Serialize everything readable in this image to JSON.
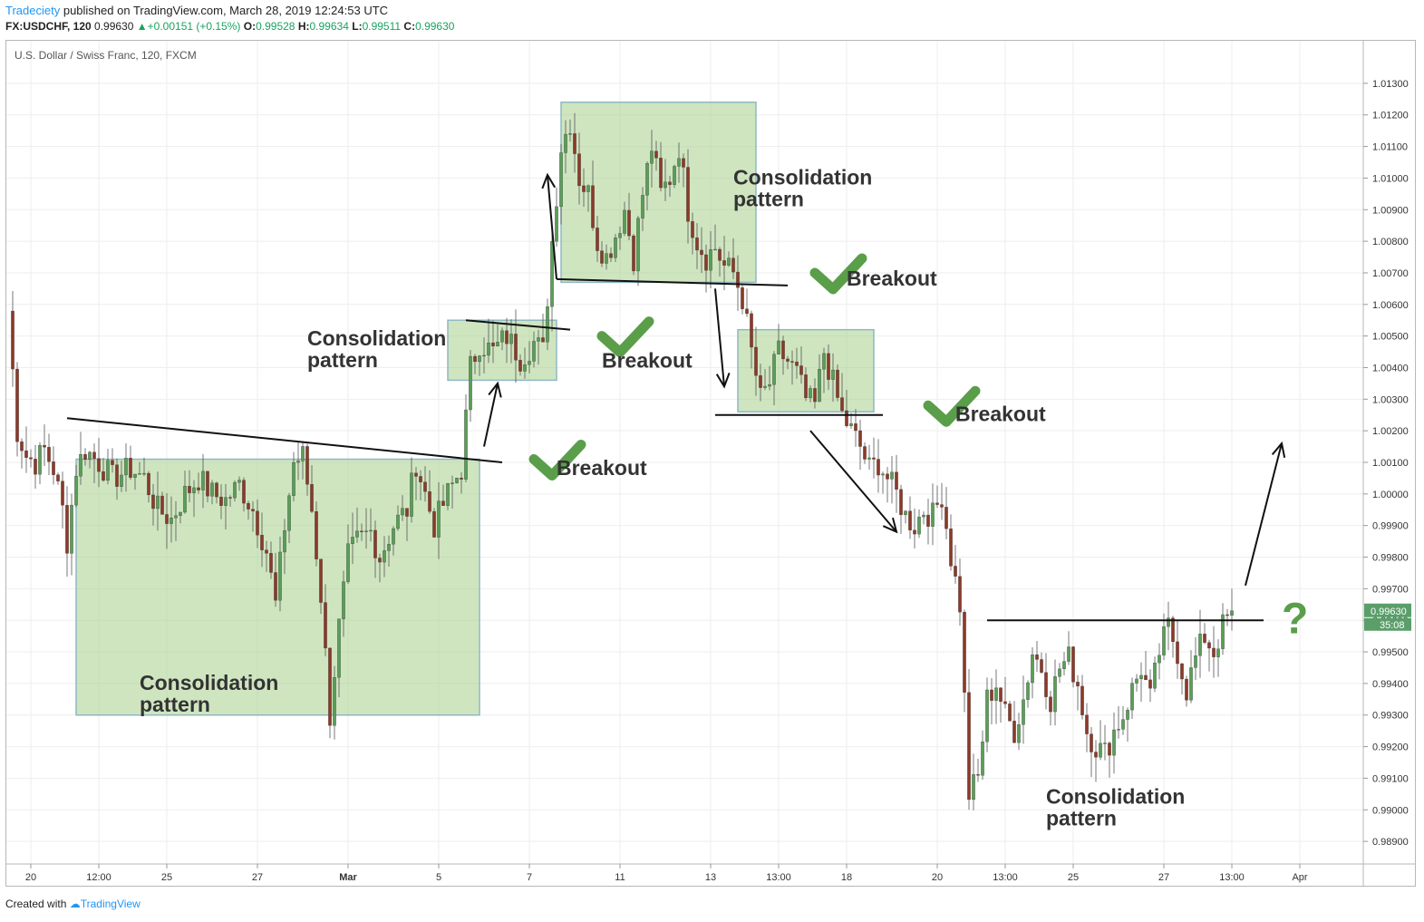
{
  "header": {
    "author": "Tradeciety",
    "published": "published on TradingView.com, March 28, 2019 12:24:53 UTC",
    "symbol": "FX:USDCHF, 120",
    "last": "0.99630",
    "change": "+0.00151 (+0.15%)",
    "o_label": "O:",
    "o_value": "0.99528",
    "h_label": "H:",
    "h_value": "0.99634",
    "l_label": "L:",
    "l_value": "0.99511",
    "c_label": "C:",
    "c_value": "0.99630"
  },
  "footer": {
    "created_with": "Created with",
    "brand": "TradingView"
  },
  "colors": {
    "up": "#5a9e58",
    "down": "#8b3a2a",
    "box_fill": "#a8d08d",
    "check": "#5a9e4a",
    "accent": "#2196f3"
  },
  "chart_data": {
    "type": "candlestick",
    "title": "U.S. Dollar / Swiss Franc, 120, FXCM",
    "ylim": [
      0.9884,
      1.0136
    ],
    "yticks": [
      1.013,
      1.012,
      1.011,
      1.01,
      1.009,
      1.008,
      1.007,
      1.006,
      1.005,
      1.004,
      1.003,
      1.002,
      1.001,
      1.0,
      0.999,
      0.998,
      0.997,
      0.996,
      0.995,
      0.994,
      0.993,
      0.992,
      0.991,
      0.99,
      0.989
    ],
    "ytick_labels": [
      "1.01300",
      "1.01200",
      "1.01100",
      "1.01000",
      "1.00900",
      "1.00800",
      "1.00700",
      "1.00600",
      "1.00500",
      "1.00400",
      "1.00300",
      "1.00200",
      "1.00100",
      "1.00000",
      "0.99900",
      "0.99800",
      "0.99700",
      "0.99600",
      "0.99500",
      "0.99400",
      "0.99300",
      "0.99200",
      "0.99100",
      "0.99000",
      "0.98900"
    ],
    "xlim": [
      0,
      298
    ],
    "xticks": [
      {
        "i": 5,
        "label": "20"
      },
      {
        "i": 20,
        "label": "12:00"
      },
      {
        "i": 35,
        "label": "25"
      },
      {
        "i": 55,
        "label": "27"
      },
      {
        "i": 75,
        "label": "Mar"
      },
      {
        "i": 95,
        "label": "5"
      },
      {
        "i": 115,
        "label": "7"
      },
      {
        "i": 135,
        "label": "11"
      },
      {
        "i": 155,
        "label": "13"
      },
      {
        "i": 170,
        "label": "13:00"
      },
      {
        "i": 185,
        "label": "18"
      },
      {
        "i": 205,
        "label": "20"
      },
      {
        "i": 220,
        "label": "13:00"
      },
      {
        "i": 235,
        "label": "25"
      },
      {
        "i": 255,
        "label": "27"
      },
      {
        "i": 270,
        "label": "13:00"
      },
      {
        "i": 285,
        "label": "Apr"
      }
    ],
    "price_tag": "0.99630",
    "price_tag_value": 0.9963,
    "countdown": "35:08",
    "waypoints": [
      [
        0,
        1.0058
      ],
      [
        2,
        1.002
      ],
      [
        4,
        1.0012
      ],
      [
        6,
        1.001
      ],
      [
        8,
        1.0014
      ],
      [
        10,
        1.0008
      ],
      [
        12,
        0.9995
      ],
      [
        13,
        0.9985
      ],
      [
        15,
        1.0008
      ],
      [
        17,
        1.0014
      ],
      [
        20,
        1.001
      ],
      [
        23,
        1.0005
      ],
      [
        27,
        1.0008
      ],
      [
        30,
        1.0005
      ],
      [
        33,
        0.9995
      ],
      [
        36,
        0.9992
      ],
      [
        39,
        1.0
      ],
      [
        42,
        1.0005
      ],
      [
        45,
        1.0
      ],
      [
        48,
        0.9998
      ],
      [
        51,
        1.0003
      ],
      [
        54,
        0.9995
      ],
      [
        57,
        0.9982
      ],
      [
        59,
        0.9965
      ],
      [
        61,
        0.999
      ],
      [
        63,
        1.001
      ],
      [
        65,
        1.0012
      ],
      [
        67,
        0.9995
      ],
      [
        69,
        0.9968
      ],
      [
        71,
        0.993
      ],
      [
        73,
        0.9958
      ],
      [
        75,
        0.998
      ],
      [
        77,
        0.9985
      ],
      [
        80,
        0.9988
      ],
      [
        82,
        0.998
      ],
      [
        85,
        0.999
      ],
      [
        88,
        0.9995
      ],
      [
        90,
        1.001
      ],
      [
        92,
        1.0
      ],
      [
        94,
        0.999
      ],
      [
        97,
        1.0
      ],
      [
        100,
        1.0008
      ],
      [
        102,
        1.004
      ],
      [
        104,
        1.0048
      ],
      [
        107,
        1.0045
      ],
      [
        110,
        1.005
      ],
      [
        113,
        1.0043
      ],
      [
        116,
        1.0048
      ],
      [
        118,
        1.0045
      ],
      [
        120,
        1.008
      ],
      [
        122,
        1.011
      ],
      [
        124,
        1.0118
      ],
      [
        126,
        1.01
      ],
      [
        128,
        1.0095
      ],
      [
        130,
        1.008
      ],
      [
        132,
        1.0075
      ],
      [
        134,
        1.0082
      ],
      [
        136,
        1.009
      ],
      [
        138,
        1.0075
      ],
      [
        140,
        1.0095
      ],
      [
        142,
        1.011
      ],
      [
        144,
        1.0095
      ],
      [
        146,
        1.01
      ],
      [
        148,
        1.011
      ],
      [
        150,
        1.009
      ],
      [
        152,
        1.008
      ],
      [
        154,
        1.0075
      ],
      [
        156,
        1.0078
      ],
      [
        158,
        1.0072
      ],
      [
        160,
        1.007
      ],
      [
        162,
        1.0062
      ],
      [
        164,
        1.0045
      ],
      [
        166,
        1.003
      ],
      [
        168,
        1.0035
      ],
      [
        170,
        1.0045
      ],
      [
        172,
        1.0042
      ],
      [
        174,
        1.0038
      ],
      [
        176,
        1.003
      ],
      [
        178,
        1.0028
      ],
      [
        180,
        1.0045
      ],
      [
        182,
        1.0035
      ],
      [
        184,
        1.0025
      ],
      [
        186,
        1.002
      ],
      [
        188,
        1.0015
      ],
      [
        190,
        1.0008
      ],
      [
        192,
        1.001
      ],
      [
        194,
        1.0005
      ],
      [
        196,
        1.0
      ],
      [
        198,
        0.9993
      ],
      [
        200,
        0.999
      ],
      [
        202,
        0.9995
      ],
      [
        204,
        0.9993
      ],
      [
        206,
        1.0
      ],
      [
        208,
        0.998
      ],
      [
        210,
        0.9965
      ],
      [
        212,
        0.9905
      ],
      [
        214,
        0.991
      ],
      [
        216,
        0.9935
      ],
      [
        218,
        0.994
      ],
      [
        220,
        0.993
      ],
      [
        222,
        0.9925
      ],
      [
        224,
        0.9935
      ],
      [
        226,
        0.995
      ],
      [
        228,
        0.9945
      ],
      [
        230,
        0.9935
      ],
      [
        232,
        0.9945
      ],
      [
        234,
        0.9948
      ],
      [
        236,
        0.994
      ],
      [
        238,
        0.9925
      ],
      [
        240,
        0.992
      ],
      [
        242,
        0.9918
      ],
      [
        244,
        0.9925
      ],
      [
        246,
        0.993
      ],
      [
        248,
        0.9938
      ],
      [
        250,
        0.9945
      ],
      [
        252,
        0.9935
      ],
      [
        254,
        0.995
      ],
      [
        256,
        0.9958
      ],
      [
        258,
        0.995
      ],
      [
        260,
        0.9938
      ],
      [
        262,
        0.9948
      ],
      [
        264,
        0.9955
      ],
      [
        266,
        0.995
      ],
      [
        268,
        0.9958
      ],
      [
        270,
        0.9963
      ]
    ],
    "boxes": [
      {
        "i0": 15,
        "i1": 104,
        "top": 1.0011,
        "bottom": 0.993
      },
      {
        "i0": 97,
        "i1": 121,
        "top": 1.0055,
        "bottom": 1.0036
      },
      {
        "i0": 122,
        "i1": 165,
        "top": 1.0124,
        "bottom": 1.0067
      },
      {
        "i0": 161,
        "i1": 191,
        "top": 1.0052,
        "bottom": 1.0026
      }
    ],
    "lines": [
      {
        "i0": 13,
        "v0": 1.0024,
        "i1": 109,
        "v1": 1.001
      },
      {
        "i0": 101,
        "v0": 1.0055,
        "i1": 124,
        "v1": 1.0052
      },
      {
        "i0": 121,
        "v0": 1.0068,
        "i1": 172,
        "v1": 1.0066
      },
      {
        "i0": 156,
        "v0": 1.0025,
        "i1": 193,
        "v1": 1.0025
      },
      {
        "i0": 216,
        "v0": 0.996,
        "i1": 277,
        "v1": 0.996
      }
    ],
    "arrows": [
      {
        "i0": 105,
        "v0": 1.0015,
        "i1": 108,
        "v1": 1.0035
      },
      {
        "i0": 121,
        "v0": 1.0068,
        "i1": 119,
        "v1": 1.0101
      },
      {
        "i0": 156,
        "v0": 1.0065,
        "i1": 158,
        "v1": 1.0034
      },
      {
        "i0": 177,
        "v0": 1.002,
        "i1": 196,
        "v1": 0.9988
      },
      {
        "i0": 273,
        "v0": 0.9971,
        "i1": 281,
        "v1": 1.0016
      }
    ],
    "checks": [
      {
        "i": 116,
        "v": 1.0011
      },
      {
        "i": 131,
        "v": 1.005
      },
      {
        "i": 178,
        "v": 1.007
      },
      {
        "i": 203,
        "v": 1.0028
      }
    ],
    "labels": [
      {
        "kind": "pattern",
        "i": 29,
        "v": 0.9938,
        "lines": [
          "Consolidation",
          "pattern"
        ]
      },
      {
        "kind": "pattern",
        "i": 66,
        "v": 1.0047,
        "lines": [
          "Consolidation",
          "pattern"
        ]
      },
      {
        "kind": "pattern",
        "i": 160,
        "v": 1.0098,
        "lines": [
          "Consolidation",
          "pattern"
        ]
      },
      {
        "kind": "pattern",
        "i": 229,
        "v": 0.9902,
        "lines": [
          "Consolidation",
          "pattern"
        ]
      },
      {
        "kind": "breakout",
        "i": 121,
        "v": 1.0006,
        "lines": [
          "Breakout"
        ]
      },
      {
        "kind": "breakout",
        "i": 131,
        "v": 1.004,
        "lines": [
          "Breakout"
        ]
      },
      {
        "kind": "breakout",
        "i": 185,
        "v": 1.0066,
        "lines": [
          "Breakout"
        ]
      },
      {
        "kind": "breakout",
        "i": 209,
        "v": 1.0023,
        "lines": [
          "Breakout"
        ]
      }
    ],
    "question": {
      "i": 281,
      "v": 0.9961,
      "text": "?"
    }
  }
}
